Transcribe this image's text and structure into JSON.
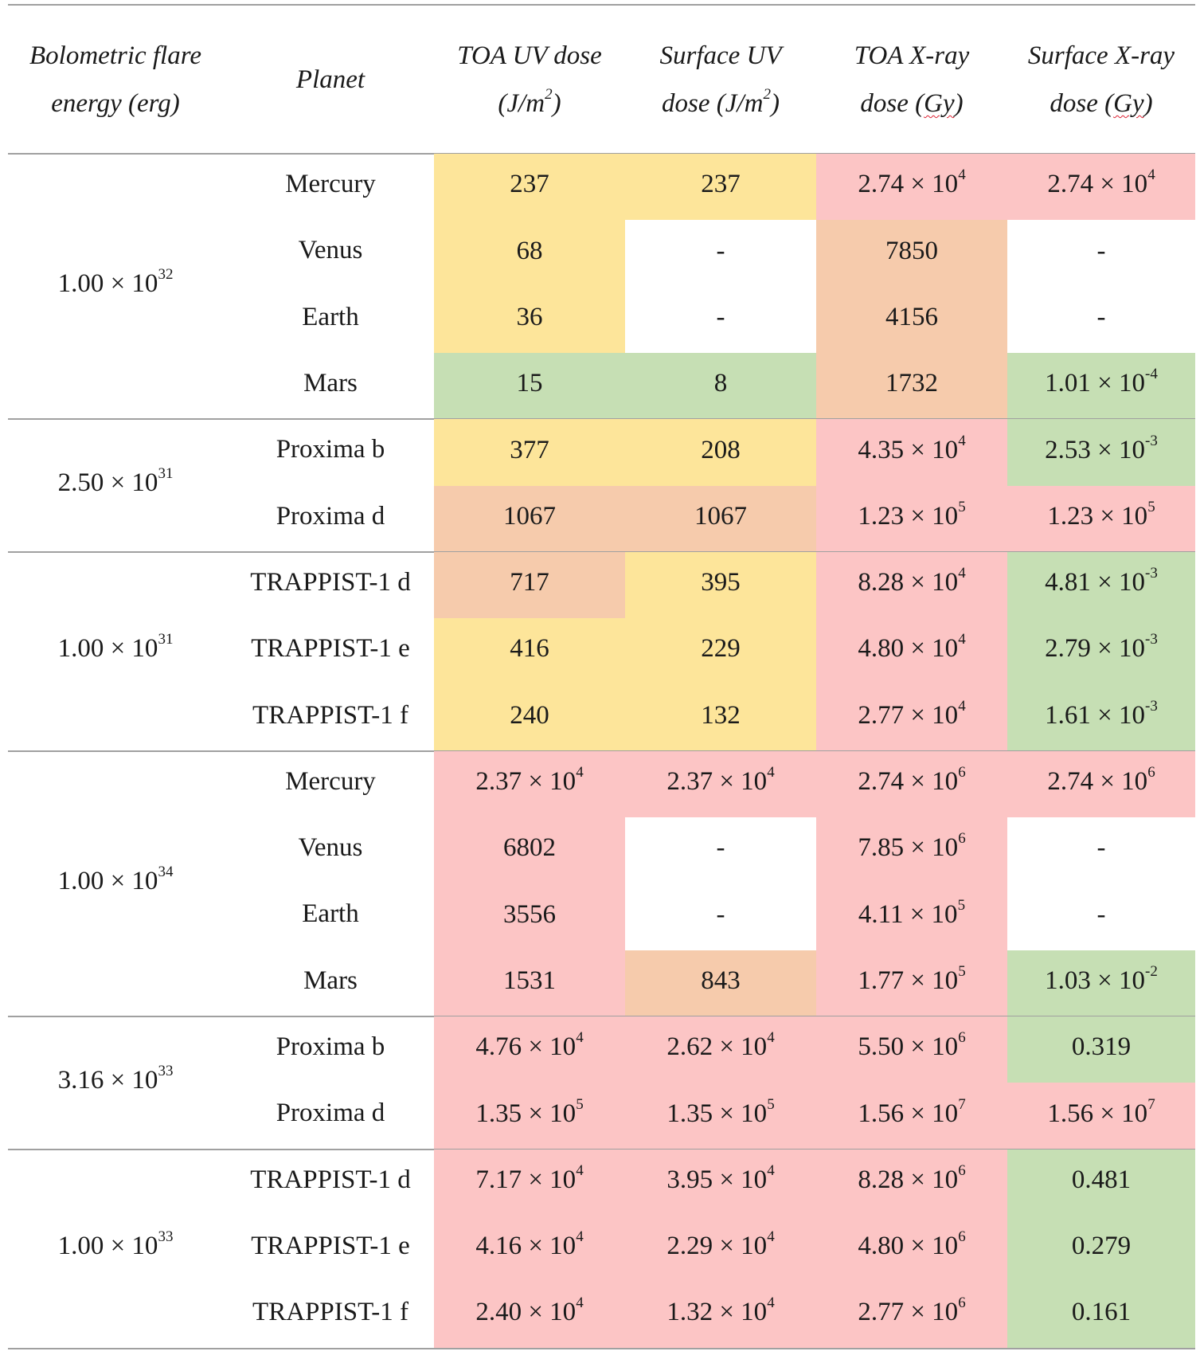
{
  "header": {
    "energy": [
      "Bolometric flare",
      "energy (erg)"
    ],
    "planet": "Planet",
    "toa_uv": [
      "TOA UV dose",
      "(J/m",
      "2",
      ")"
    ],
    "surf_uv": [
      "Surface UV",
      "dose (J/m",
      "2",
      ")"
    ],
    "toa_x": [
      "TOA X-ray",
      "dose (",
      "Gy",
      ")"
    ],
    "surf_x": [
      "Surface X-ray",
      "dose (",
      "Gy",
      ")"
    ]
  },
  "groups": [
    {
      "mant": "1.00 × 10",
      "exp": "32",
      "rows": [
        {
          "planet": "Mercury",
          "cells": [
            [
              "237",
              "",
              "y"
            ],
            [
              "237",
              "",
              "y"
            ],
            [
              "2.74 × 10",
              "4",
              "r"
            ],
            [
              "2.74 × 10",
              "4",
              "r"
            ]
          ]
        },
        {
          "planet": "Venus",
          "cells": [
            [
              "68",
              "",
              "y"
            ],
            [
              "-",
              "",
              "w"
            ],
            [
              "7850",
              "",
              "o"
            ],
            [
              "-",
              "",
              "w"
            ]
          ]
        },
        {
          "planet": "Earth",
          "cells": [
            [
              "36",
              "",
              "y"
            ],
            [
              "-",
              "",
              "w"
            ],
            [
              "4156",
              "",
              "o"
            ],
            [
              "-",
              "",
              "w"
            ]
          ]
        },
        {
          "planet": "Mars",
          "cells": [
            [
              "15",
              "",
              "g"
            ],
            [
              "8",
              "",
              "g"
            ],
            [
              "1732",
              "",
              "o"
            ],
            [
              "1.01 × 10",
              "-4",
              "g"
            ]
          ]
        }
      ]
    },
    {
      "mant": "2.50 × 10",
      "exp": "31",
      "rows": [
        {
          "planet": "Proxima b",
          "cells": [
            [
              "377",
              "",
              "y"
            ],
            [
              "208",
              "",
              "y"
            ],
            [
              "4.35 × 10",
              "4",
              "r"
            ],
            [
              "2.53 × 10",
              "-3",
              "g"
            ]
          ]
        },
        {
          "planet": "Proxima d",
          "cells": [
            [
              "1067",
              "",
              "o"
            ],
            [
              "1067",
              "",
              "o"
            ],
            [
              "1.23 × 10",
              "5",
              "r"
            ],
            [
              "1.23 × 10",
              "5",
              "r"
            ]
          ]
        }
      ]
    },
    {
      "mant": "1.00 × 10",
      "exp": "31",
      "rows": [
        {
          "planet": "TRAPPIST-1 d",
          "cells": [
            [
              "717",
              "",
              "o"
            ],
            [
              "395",
              "",
              "y"
            ],
            [
              "8.28 × 10",
              "4",
              "r"
            ],
            [
              "4.81 × 10",
              "-3",
              "g"
            ]
          ]
        },
        {
          "planet": "TRAPPIST-1 e",
          "cells": [
            [
              "416",
              "",
              "y"
            ],
            [
              "229",
              "",
              "y"
            ],
            [
              "4.80 × 10",
              "4",
              "r"
            ],
            [
              "2.79 × 10",
              "-3",
              "g"
            ]
          ]
        },
        {
          "planet": "TRAPPIST-1 f",
          "cells": [
            [
              "240",
              "",
              "y"
            ],
            [
              "132",
              "",
              "y"
            ],
            [
              "2.77 × 10",
              "4",
              "r"
            ],
            [
              "1.61 × 10",
              "-3",
              "g"
            ]
          ]
        }
      ]
    },
    {
      "mant": "1.00 × 10",
      "exp": "34",
      "rows": [
        {
          "planet": "Mercury",
          "cells": [
            [
              "2.37 × 10",
              "4",
              "r"
            ],
            [
              "2.37 × 10",
              "4",
              "r"
            ],
            [
              "2.74 × 10",
              "6",
              "r"
            ],
            [
              "2.74 × 10",
              "6",
              "r"
            ]
          ]
        },
        {
          "planet": "Venus",
          "cells": [
            [
              "6802",
              "",
              "r"
            ],
            [
              "-",
              "",
              "w"
            ],
            [
              "7.85 × 10",
              "6",
              "r"
            ],
            [
              "-",
              "",
              "w"
            ]
          ]
        },
        {
          "planet": "Earth",
          "cells": [
            [
              "3556",
              "",
              "r"
            ],
            [
              "-",
              "",
              "w"
            ],
            [
              "4.11 × 10",
              "5",
              "r"
            ],
            [
              "-",
              "",
              "w"
            ]
          ]
        },
        {
          "planet": "Mars",
          "cells": [
            [
              "1531",
              "",
              "r"
            ],
            [
              "843",
              "",
              "o"
            ],
            [
              "1.77 × 10",
              "5",
              "r"
            ],
            [
              "1.03 × 10",
              "-2",
              "g"
            ]
          ]
        }
      ]
    },
    {
      "mant": "3.16 × 10",
      "exp": "33",
      "rows": [
        {
          "planet": "Proxima b",
          "cells": [
            [
              "4.76 × 10",
              "4",
              "r"
            ],
            [
              "2.62 × 10",
              "4",
              "r"
            ],
            [
              "5.50 × 10",
              "6",
              "r"
            ],
            [
              "0.319",
              "",
              "g"
            ]
          ]
        },
        {
          "planet": "Proxima d",
          "cells": [
            [
              "1.35 × 10",
              "5",
              "r"
            ],
            [
              "1.35 × 10",
              "5",
              "r"
            ],
            [
              "1.56 × 10",
              "7",
              "r"
            ],
            [
              "1.56 × 10",
              "7",
              "r"
            ]
          ]
        }
      ]
    },
    {
      "mant": "1.00 × 10",
      "exp": "33",
      "rows": [
        {
          "planet": "TRAPPIST-1 d",
          "cells": [
            [
              "7.17 × 10",
              "4",
              "r"
            ],
            [
              "3.95 × 10",
              "4",
              "r"
            ],
            [
              "8.28 × 10",
              "6",
              "r"
            ],
            [
              "0.481",
              "",
              "g"
            ]
          ]
        },
        {
          "planet": "TRAPPIST-1 e",
          "cells": [
            [
              "4.16 × 10",
              "4",
              "r"
            ],
            [
              "2.29 × 10",
              "4",
              "r"
            ],
            [
              "4.80 × 10",
              "6",
              "r"
            ],
            [
              "0.279",
              "",
              "g"
            ]
          ]
        },
        {
          "planet": "TRAPPIST-1 f",
          "cells": [
            [
              "2.40 × 10",
              "4",
              "r"
            ],
            [
              "1.32 × 10",
              "4",
              "r"
            ],
            [
              "2.77 × 10",
              "6",
              "r"
            ],
            [
              "0.161",
              "",
              "g"
            ]
          ]
        }
      ]
    }
  ]
}
